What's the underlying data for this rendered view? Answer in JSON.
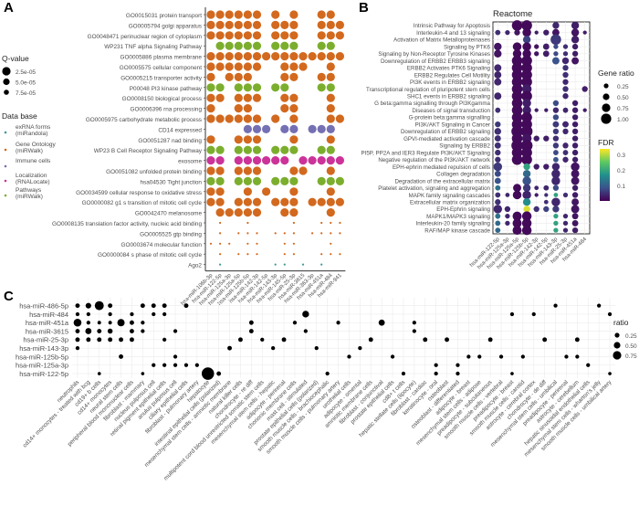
{
  "panels": {
    "a_letter": "A",
    "b_letter": "B",
    "c_letter": "C"
  },
  "chart_data": [
    {
      "panel": "A",
      "type": "scatter",
      "title": "",
      "xlabel": "",
      "ylabel": "",
      "grid": false,
      "categories_x": [
        "hsa-miR-106b-3p",
        "hsa-miR-122-5p",
        "hsa-miR-125a-3p",
        "hsa-miR-125a-5p",
        "hsa-miR-125b-5p",
        "hsa-miR-142-3p",
        "hsa-miR-142-5p",
        "hsa-miR-143-3p",
        "hsa-miR-145-5p",
        "hsa-miR-25-3p",
        "hsa-miR-3615",
        "hsa-miR-363-3p",
        "hsa-miR-451a",
        "hsa-miR-484",
        "hsa-miR-941"
      ],
      "categories_y": [
        {
          "label": "GO0015031 protein transport",
          "db": "go"
        },
        {
          "label": "GO0005794 golgi apparatus",
          "db": "go"
        },
        {
          "label": "GO0048471 perinuclear region of cytoplasm",
          "db": "go"
        },
        {
          "label": "WP231 TNF alpha Signaling Pathway",
          "db": "pw"
        },
        {
          "label": "GO0005886 plasma membrane",
          "db": "go"
        },
        {
          "label": "GO0005575 cellular component",
          "db": "go"
        },
        {
          "label": "GO0005215 transporter activity",
          "db": "go"
        },
        {
          "label": "P00048 PI3 kinase pathway",
          "db": "pw"
        },
        {
          "label": "GO0008150 biological process",
          "db": "go"
        },
        {
          "label": "GO0006396 rna processing",
          "db": "go"
        },
        {
          "label": "GO0005975 carbohydrate metabolic process",
          "db": "go"
        },
        {
          "label": "CD14 expressed",
          "db": "im"
        },
        {
          "label": "GO0051287 nad binding",
          "db": "go"
        },
        {
          "label": "WP23 B Cell Receptor Signaling Pathway",
          "db": "pw"
        },
        {
          "label": "exosome",
          "db": "loc"
        },
        {
          "label": "GO0051082 unfolded protein binding",
          "db": "go"
        },
        {
          "label": "hsa04530 Tight junction",
          "db": "pw"
        },
        {
          "label": "GO0034599 cellular response to oxidative stress",
          "db": "go"
        },
        {
          "label": "GO0000082 g1 s transition of mitotic cell cycle",
          "db": "go"
        },
        {
          "label": "GO0042470 melanosome",
          "db": "go"
        },
        {
          "label": "GO0008135 translation factor activity, nucleic acid binding",
          "db": "go"
        },
        {
          "label": "GO0005525 gtp binding",
          "db": "go"
        },
        {
          "label": "GO0003674 molecular function",
          "db": "go"
        },
        {
          "label": "GO0000084 s phase of mitotic cell cycle",
          "db": "go"
        },
        {
          "label": "Ago2",
          "db": "ex"
        }
      ],
      "rows_present": [
        "111111010100110",
        "111111011100111",
        "111111011100111",
        "011111011100110",
        "111111111111111",
        "111111001110010",
        "101110001100110",
        "110111011000110",
        "110111001100010",
        "100110001100010",
        "111111010100011",
        "000011101101110",
        "100111000100010",
        "110111011100110",
        "110111111011111",
        "110111000110010",
        "110111011100111",
        "110010100100010",
        "110111011101111",
        "011111001100010",
        "010010000100111",
        "010111011101111",
        "111011001100010",
        "010111001100111",
        "010000011010100"
      ],
      "size_by_row": [
        "l",
        "l",
        "l",
        "l",
        "l",
        "l",
        "l",
        "l",
        "l",
        "l",
        "l",
        "l",
        "l",
        "l",
        "l",
        "l",
        "l",
        "l",
        "l",
        "l",
        "s",
        "s",
        "s",
        "s",
        "s"
      ],
      "legend": {
        "size_title": "Q-value",
        "size_entries": [
          "2.5e-05",
          "5.0e-05",
          "7.5e-05"
        ],
        "color_title": "Data base",
        "color_entries": [
          {
            "key": "ex",
            "label": "exRNA forms (miRandola)",
            "color": "#3f9a96"
          },
          {
            "key": "go",
            "label": "Gene Ontology (miRWalk)",
            "color": "#d2691e"
          },
          {
            "key": "im",
            "label": "Immune cells",
            "color": "#7570b3"
          },
          {
            "key": "loc",
            "label": "Localization (RNALocate)",
            "color": "#cc3399"
          },
          {
            "key": "pw",
            "label": "Pathways (miRWalk)",
            "color": "#7cae2e"
          }
        ]
      }
    },
    {
      "panel": "B",
      "type": "scatter",
      "title": "Reactome",
      "xlabel": "",
      "ylabel": "",
      "grid": true,
      "categories_x": [
        "hsa-miR-122-5p",
        "hsa-miR-125a-3p",
        "hsa-miR-125a-5p",
        "hsa-miR-125b-5p",
        "hsa-miR-142-3p",
        "hsa-miR-142-5p",
        "hsa-miR-143-3p",
        "hsa-miR-25-3p",
        "hsa-miR-451a",
        "hsa-miR-484"
      ],
      "categories_y": [
        "Intrinsic Pathway for Apoptosis",
        "Interleukin-4 and 13 signaling",
        "Activation of Matrix Metalloproteinases",
        "Signaling by PTK6",
        "Signaling by Non-Receptor Tyrosine Kinases",
        "Downregulation of ERBB2 ERBB3 signaling",
        "ERBB2 Activates PTK6 Signaling",
        "ERBB2 Regulates Cell Motility",
        "PI3K events in ERBB2 signaling",
        "Transcriptional regulation of pluripotent stem cells",
        "SHC1 events in ERBB2 signaling",
        "G beta:gamma signalling through PI3Kgamma",
        "Diseases of signal transduction",
        "G-protein beta:gamma signalling",
        "PI3K/AKT Signaling in Cancer",
        "Downregulation of ERBB2 signaling",
        "GPVI-mediated activation cascade",
        "Signaling by ERBB2",
        "PI5P, PP2A and IER3 Regulate PI3K/AKT Signaling",
        "Negative regulation of the PI3K/AKT network",
        "EPH-ephrin mediated repulsion of cells",
        "Collagen degradation",
        "Degradation of the extracellular matrix",
        "Platelet activation, signaling and aggregation",
        "MAPK family signaling cascades",
        "Extracellular matrix organization",
        "EPH-Ephrin signaling",
        "MAPK1/MAPK3 signaling",
        "Interleukin-20 family signaling",
        "RAF/MAP kinase cascade"
      ],
      "points": [
        [
          0,
          3,
          0.8,
          0.02
        ],
        [
          0,
          4,
          0.8,
          0.02
        ],
        [
          0,
          7,
          0.6,
          0.03
        ],
        [
          0,
          8,
          0.6,
          0.03
        ],
        [
          1,
          1,
          0.2,
          0.04
        ],
        [
          1,
          3,
          0.2,
          0.04
        ],
        [
          1,
          7,
          0.2,
          0.04
        ],
        [
          1,
          8,
          0.2,
          0.04
        ],
        [
          1,
          12,
          0.2,
          0.04
        ],
        [
          3,
          0,
          0.9,
          0.01
        ],
        [
          3,
          3,
          0.4,
          0.03
        ],
        [
          3,
          4,
          0.5,
          0.03
        ],
        [
          3,
          5,
          0.7,
          0.02
        ],
        [
          3,
          6,
          0.7,
          0.03
        ],
        [
          3,
          7,
          0.5,
          0.04
        ],
        [
          3,
          8,
          0.4,
          0.03
        ],
        [
          3,
          11,
          0.4,
          0.06
        ],
        [
          3,
          12,
          0.4,
          0.06
        ],
        [
          3,
          13,
          0.4,
          0.06
        ],
        [
          3,
          16,
          0.3,
          0.04
        ],
        [
          3,
          20,
          0.7,
          0.04
        ],
        [
          3,
          21,
          0.7,
          0.04
        ],
        [
          4,
          3,
          0.2,
          0.03
        ],
        [
          4,
          10,
          0.2,
          0.03
        ],
        [
          4,
          14,
          0.2,
          0.05
        ],
        [
          2,
          1,
          0.2,
          0.04
        ],
        [
          2,
          3,
          0.6,
          0.02
        ]
      ],
      "legend": {
        "size_title": "Gene ratio",
        "size_entries": [
          "0.25",
          "0.50",
          "0.75",
          "1.00"
        ],
        "color_title": "FDR",
        "color_ticks": [
          "0.3",
          "0.2",
          "0.1"
        ],
        "color_low": "#440154",
        "color_high": "#fde725"
      }
    },
    {
      "panel": "C",
      "type": "scatter",
      "title": "",
      "xlabel": "",
      "ylabel": "",
      "grid": true,
      "categories_y": [
        "hsa-miR-486-5p",
        "hsa-miR-484",
        "hsa-miR-451a",
        "hsa-miR-3615",
        "hsa-miR-25-3p",
        "hsa-miR-143-3p",
        "hsa-miR-125b-5p",
        "hsa-miR-125a-3p",
        "hsa-miR-122-5p"
      ],
      "categories_x": [
        "neutrophils",
        "cd14+ monocytes - treated with bcg",
        "cd19+ b cells",
        "cd14+ monocytes",
        "neural stem cells",
        "peripheral blood mononuclear cells",
        "fibroblast - mammary",
        "nucleus pulposus cell",
        "retinal pigment epithelial cells",
        "anulus pulposus cell",
        "ciliary epithelial cells",
        "fibroblast - pulmonary artery",
        "hepatocyte",
        "intestinal epithelial cells (polarized)",
        "mesenchymal stem cells - amniotic membrane",
        "natural killer cells",
        "chondrocyte - re diff",
        "multipotent cord blood unrestricted somatic stem cells",
        "mesenchymal stem cells - hepatic",
        "adipocyte - perirenal",
        "chorionic membrane cells",
        "mast cell - stimulated",
        "prostate epithelial cells (polarized)",
        "smooth muscle cells - brachiocephalic",
        "smooth muscle cells - pulmonary artery",
        "urothelial cells",
        "adipocyte - omental",
        "amniotic membrane cells",
        "fibroblast - conjunctival",
        "prostate epithelial cells",
        "cd8+ t cells",
        "hepatic stellate cells (lipocyte)",
        "fibroblast - cardiac",
        "keratinocyte - oral",
        "osteoblast",
        "osteoblast - differentiated",
        "adipocyte - breast",
        "mesenchymal stem cells - adipose",
        "preadipocyte - subcutaneous",
        "smooth muscle cells - vertebral",
        "preadipocyte - breast",
        "smooth muscle cells - carotid",
        "astrocyte - cerebral cortex",
        "chondrocyte - de diff",
        "mesenchymal stem cells - umbilical",
        "preadipocyte - perirenal",
        "astrocyte - cerebellum",
        "hepatic sinusoidal endothelial cells",
        "mesenchymal stem cells - wharton's jelly",
        "smooth muscle cells - umbilical artery"
      ],
      "points": [
        [
          0,
          0,
          0.2
        ],
        [
          1,
          0,
          0.3
        ],
        [
          2,
          0,
          0.6
        ],
        [
          3,
          0,
          0.2
        ],
        [
          6,
          0,
          0.2
        ],
        [
          7,
          0,
          0.2
        ],
        [
          8,
          0,
          0.2
        ],
        [
          10,
          0,
          0.2
        ],
        [
          0,
          1,
          0.15
        ],
        [
          1,
          1,
          0.15
        ],
        [
          3,
          1,
          0.15
        ],
        [
          5,
          1,
          0.15
        ],
        [
          7,
          1,
          0.15
        ],
        [
          8,
          1,
          0.15
        ],
        [
          0,
          2,
          0.5
        ],
        [
          1,
          2,
          0.15
        ],
        [
          2,
          2,
          0.12
        ],
        [
          3,
          2,
          0.12
        ],
        [
          4,
          2,
          0.45
        ],
        [
          5,
          2,
          0.2
        ],
        [
          6,
          2,
          0.15
        ],
        [
          0,
          3,
          0.2
        ],
        [
          1,
          3,
          0.35
        ],
        [
          2,
          3,
          0.2
        ],
        [
          3,
          3,
          0.25
        ],
        [
          5,
          3,
          0.2
        ],
        [
          6,
          3,
          0.15
        ],
        [
          9,
          3,
          0.15
        ],
        [
          0,
          4,
          0.2
        ],
        [
          1,
          4,
          0.2
        ],
        [
          2,
          4,
          0.2
        ],
        [
          3,
          4,
          0.2
        ],
        [
          4,
          4,
          0.2
        ],
        [
          5,
          4,
          0.2
        ],
        [
          8,
          4,
          0.15
        ],
        [
          0,
          5,
          0.15
        ],
        [
          4,
          6,
          0.2
        ],
        [
          9,
          6,
          0.15
        ],
        [
          7,
          7,
          0.15
        ],
        [
          8,
          7,
          0.15
        ],
        [
          9,
          7,
          0.15
        ],
        [
          10,
          7,
          0.15
        ],
        [
          11,
          7,
          0.15
        ],
        [
          2,
          8,
          0.1
        ],
        [
          6,
          8,
          0.1
        ],
        [
          12,
          8,
          0.9
        ],
        [
          13,
          8,
          0.2
        ],
        [
          14,
          5,
          0.2
        ],
        [
          15,
          4,
          0.2
        ],
        [
          16,
          3,
          0.2
        ],
        [
          16,
          2,
          0.2
        ],
        [
          17,
          4,
          0.15
        ],
        [
          18,
          5,
          0.15
        ],
        [
          19,
          4,
          0.2
        ],
        [
          20,
          2,
          0.15
        ],
        [
          21,
          1,
          0.4
        ],
        [
          21,
          3,
          0.15
        ],
        [
          22,
          5,
          0.15
        ],
        [
          23,
          8,
          0.15
        ],
        [
          24,
          2,
          0.15
        ],
        [
          25,
          6,
          0.15
        ],
        [
          26,
          5,
          0.15
        ],
        [
          27,
          4,
          0.2
        ],
        [
          28,
          2,
          0.35
        ],
        [
          29,
          6,
          0.15
        ],
        [
          30,
          8,
          0.15
        ],
        [
          31,
          3,
          0.15
        ],
        [
          31,
          2,
          0.15
        ],
        [
          32,
          4,
          0.2
        ],
        [
          33,
          8,
          0.15
        ],
        [
          33,
          7,
          0.15
        ],
        [
          34,
          4,
          0.2
        ],
        [
          35,
          7,
          0.15
        ],
        [
          35,
          8,
          0.15
        ],
        [
          36,
          6,
          0.15
        ],
        [
          37,
          6,
          0.15
        ],
        [
          38,
          4,
          0.2
        ],
        [
          39,
          6,
          0.15
        ],
        [
          40,
          1,
          0.15
        ],
        [
          40,
          8,
          0.1
        ],
        [
          41,
          6,
          0.15
        ],
        [
          42,
          1,
          0.15
        ],
        [
          43,
          4,
          0.2
        ],
        [
          44,
          0,
          0.15
        ],
        [
          45,
          6,
          0.15
        ],
        [
          46,
          4,
          0.2
        ],
        [
          46,
          6,
          0.15
        ],
        [
          47,
          7,
          0.15
        ],
        [
          48,
          0,
          0.15
        ],
        [
          49,
          1,
          0.15
        ],
        [
          49,
          8,
          0.1
        ]
      ],
      "legend": {
        "size_title": "ratio",
        "size_entries": [
          "0.25",
          "0.50",
          "0.75"
        ]
      }
    }
  ]
}
